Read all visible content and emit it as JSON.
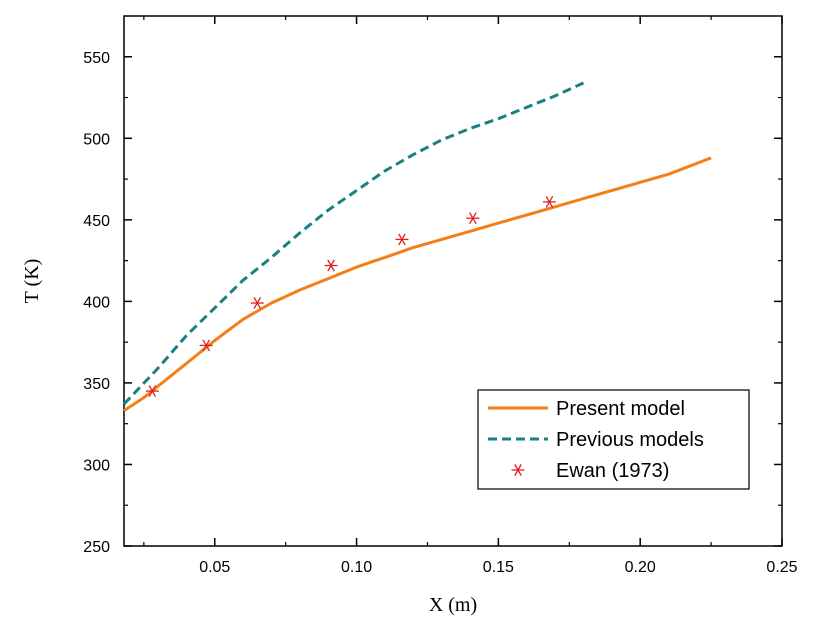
{
  "chart_data": {
    "type": "line",
    "title": "",
    "xlabel": "X (m)",
    "ylabel": "T (K)",
    "xlim": [
      0.018,
      0.25
    ],
    "ylim": [
      250,
      575
    ],
    "x_ticks": [
      0.05,
      0.1,
      0.15,
      0.2,
      0.25
    ],
    "x_tick_labels": [
      "0.05",
      "0.10",
      "0.15",
      "0.20",
      "0.25"
    ],
    "y_ticks": [
      250,
      300,
      350,
      400,
      450,
      500,
      550
    ],
    "y_tick_labels": [
      "250",
      "300",
      "350",
      "400",
      "450",
      "500",
      "550"
    ],
    "grid": false,
    "legend_position": "bottom-right",
    "series": [
      {
        "name": "Present model",
        "style": "solid",
        "color": "#f57f17",
        "x": [
          0.018,
          0.025,
          0.03,
          0.04,
          0.05,
          0.06,
          0.07,
          0.08,
          0.09,
          0.1,
          0.11,
          0.12,
          0.13,
          0.14,
          0.15,
          0.16,
          0.17,
          0.18,
          0.19,
          0.2,
          0.21,
          0.225
        ],
        "y": [
          333,
          341,
          348,
          362,
          376,
          389,
          399,
          407,
          414,
          421,
          427,
          433,
          438,
          443,
          448,
          453,
          458,
          463,
          468,
          473,
          478,
          488
        ]
      },
      {
        "name": "Previous models",
        "style": "dashed",
        "color": "#1a8080",
        "x": [
          0.018,
          0.03,
          0.04,
          0.05,
          0.06,
          0.07,
          0.08,
          0.09,
          0.1,
          0.11,
          0.12,
          0.13,
          0.14,
          0.15,
          0.16,
          0.17,
          0.18
        ],
        "y": [
          337,
          359,
          379,
          396,
          413,
          427,
          442,
          456,
          468,
          480,
          490,
          499,
          506,
          512,
          519,
          526,
          534
        ]
      },
      {
        "name": "Ewan (1973)",
        "style": "marker",
        "color": "#e02020",
        "x": [
          0.028,
          0.047,
          0.065,
          0.091,
          0.116,
          0.141,
          0.168
        ],
        "y": [
          345,
          373,
          399,
          422,
          438,
          451,
          461
        ]
      }
    ]
  }
}
